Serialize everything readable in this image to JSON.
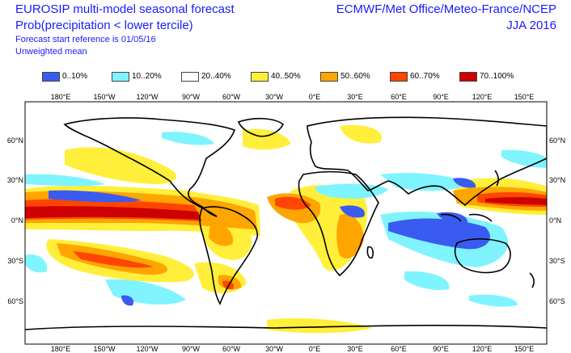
{
  "header": {
    "title_line1": "EUROSIP multi-model seasonal forecast",
    "title_line2": "Prob(precipitation < lower tercile)",
    "start_reference": "Forecast start reference is 01/05/16",
    "weighting": "Unweighted mean",
    "centres": "ECMWF/Met Office/Meteo-France/NCEP",
    "season": "JJA 2016"
  },
  "legend": [
    {
      "label": "0..10%",
      "color": "#3a5bf0"
    },
    {
      "label": "10..20%",
      "color": "#7ff4ff"
    },
    {
      "label": "20..40%",
      "color": "#ffffff"
    },
    {
      "label": "40..50%",
      "color": "#ffef3a"
    },
    {
      "label": "50..60%",
      "color": "#ffa500"
    },
    {
      "label": "60..70%",
      "color": "#ff4500"
    },
    {
      "label": "70..100%",
      "color": "#cc0000"
    }
  ],
  "axes": {
    "lon_top": [
      "180°E",
      "150°W",
      "120°W",
      "90°W",
      "60°W",
      "30°W",
      "0°E",
      "30°E",
      "60°E",
      "90°E",
      "120°E",
      "150°E"
    ],
    "lon_bottom": [
      "180°E",
      "150°W",
      "120°W",
      "90°W",
      "60°W",
      "30°W",
      "0°E",
      "30°E",
      "60°E",
      "90°E",
      "120°E",
      "150°E"
    ],
    "lat_left": [
      "60°N",
      "30°N",
      "0°N",
      "30°S",
      "60°S"
    ],
    "lat_right": [
      "60°N",
      "30°N",
      "0°N",
      "30°S",
      "60°S"
    ]
  }
}
